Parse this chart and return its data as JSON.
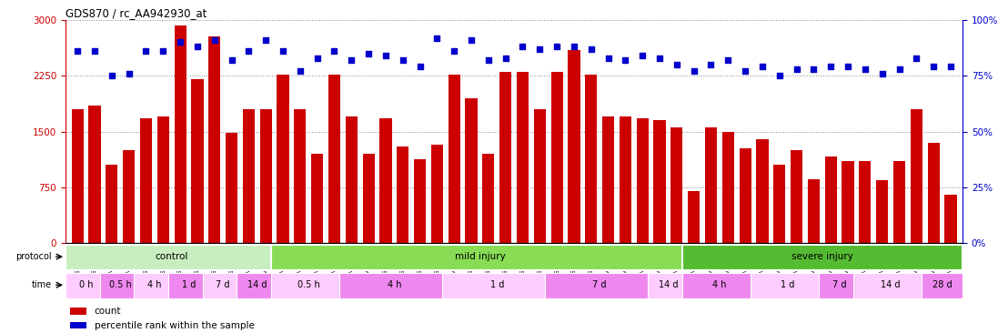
{
  "title": "GDS870 / rc_AA942930_at",
  "samples": [
    "GSM4440",
    "GSM4441",
    "GSM31279",
    "GSM31282",
    "GSM4436",
    "GSM4437",
    "GSM4434",
    "GSM4435",
    "GSM4438",
    "GSM4439",
    "GSM31275",
    "GSM31667",
    "GSM31322",
    "GSM31323",
    "GSM31325",
    "GSM31326",
    "GSM31327",
    "GSM31331",
    "GSM4458",
    "GSM4459",
    "GSM4460",
    "GSM4461",
    "GSM31336",
    "GSM4454",
    "GSM4455",
    "GSM4456",
    "GSM4457",
    "GSM4462",
    "GSM4463",
    "GSM4464",
    "GSM4465",
    "GSM31301",
    "GSM31307",
    "GSM31312",
    "GSM31313",
    "GSM31374",
    "GSM31375",
    "GSM31377",
    "GSM31379",
    "GSM31352",
    "GSM31355",
    "GSM31361",
    "GSM31362",
    "GSM31386",
    "GSM31387",
    "GSM31393",
    "GSM31346",
    "GSM31347",
    "GSM31348",
    "GSM31369",
    "GSM31370",
    "GSM31372"
  ],
  "counts": [
    1800,
    1850,
    1050,
    1250,
    1680,
    1700,
    2920,
    2200,
    2780,
    1480,
    1800,
    1800,
    2270,
    1800,
    1200,
    2270,
    1700,
    1200,
    1680,
    1300,
    1130,
    1320,
    2270,
    1950,
    1200,
    2300,
    2300,
    1800,
    2300,
    2600,
    2270,
    1700,
    1700,
    1680,
    1650,
    1550,
    700,
    1550,
    1500,
    1280,
    1400,
    1050,
    1250,
    860,
    1160,
    1100,
    1100,
    850,
    1100,
    1800,
    1350,
    650
  ],
  "percentile_ranks": [
    86,
    86,
    75,
    76,
    86,
    86,
    90,
    88,
    91,
    82,
    86,
    91,
    86,
    77,
    83,
    86,
    82,
    85,
    84,
    82,
    79,
    92,
    86,
    91,
    82,
    83,
    88,
    87,
    88,
    88,
    87,
    83,
    82,
    84,
    83,
    80,
    77,
    80,
    82,
    77,
    79,
    75,
    78,
    78,
    79,
    79,
    78,
    76,
    78,
    83,
    79,
    79
  ],
  "bar_color": "#cc0000",
  "dot_color": "#0000cc",
  "left_yaxis_color": "#cc0000",
  "right_yaxis_color": "#0000cc",
  "left_ylim": [
    0,
    3000
  ],
  "right_ylim": [
    0,
    100
  ],
  "left_yticks": [
    0,
    750,
    1500,
    2250,
    3000
  ],
  "right_yticks": [
    0,
    25,
    50,
    75,
    100
  ],
  "right_yticklabels": [
    "0%",
    "25%",
    "50%",
    "75%",
    "100%"
  ],
  "background_color": "#ffffff",
  "grid_color": "#888888",
  "protocol_defs": [
    [
      "control",
      0,
      12,
      "#bbeeaa"
    ],
    [
      "mild injury",
      12,
      36,
      "#88dd55"
    ],
    [
      "severe injury",
      36,
      52,
      "#55bb33"
    ]
  ],
  "time_defs": [
    [
      "0 h",
      0,
      2,
      0
    ],
    [
      "0.5 h",
      2,
      4,
      1
    ],
    [
      "4 h",
      4,
      6,
      0
    ],
    [
      "1 d",
      6,
      8,
      1
    ],
    [
      "7 d",
      8,
      10,
      0
    ],
    [
      "14 d",
      10,
      12,
      1
    ],
    [
      "0.5 h",
      12,
      16,
      0
    ],
    [
      "4 h",
      16,
      22,
      1
    ],
    [
      "1 d",
      22,
      28,
      0
    ],
    [
      "7 d",
      28,
      34,
      1
    ],
    [
      "14 d",
      34,
      36,
      0
    ],
    [
      "4 h",
      36,
      40,
      1
    ],
    [
      "1 d",
      40,
      44,
      0
    ],
    [
      "7 d",
      44,
      46,
      1
    ],
    [
      "14 d",
      46,
      50,
      0
    ],
    [
      "28 d",
      50,
      52,
      1
    ]
  ],
  "pink_light": "#ffccff",
  "pink_dark": "#ee88ee",
  "legend": [
    {
      "label": "count",
      "color": "#cc0000"
    },
    {
      "label": "percentile rank within the sample",
      "color": "#0000cc"
    }
  ]
}
